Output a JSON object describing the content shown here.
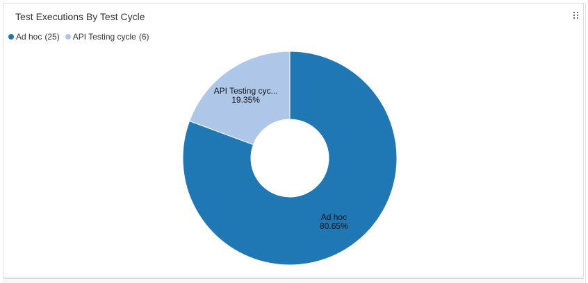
{
  "widget": {
    "title": "Test Executions By Test Cycle"
  },
  "legend": {
    "items": [
      {
        "label": "Ad hoc",
        "count": "(25)",
        "color": "#1f77b4"
      },
      {
        "label": "API Testing cycle",
        "count": "(6)",
        "color": "#aec7e8"
      }
    ]
  },
  "chart_data": {
    "type": "pie",
    "variant": "donut",
    "title": "Test Executions By Test Cycle",
    "legend_position": "top-left",
    "slices": [
      {
        "name": "Ad hoc",
        "value": 25,
        "percent_label": "80.65%",
        "slice_label": "Ad hoc",
        "color": "#1f77b4"
      },
      {
        "name": "API Testing cycle",
        "value": 6,
        "percent_label": "19.35%",
        "slice_label": "API Testing cyc...",
        "color": "#aec7e8"
      }
    ]
  }
}
